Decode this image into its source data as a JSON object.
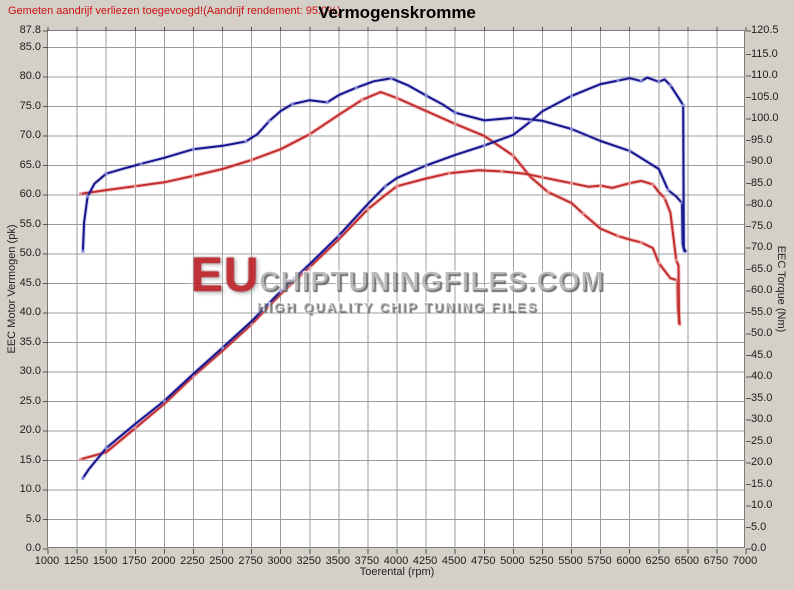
{
  "header": {
    "notice": "Gemeten aandrijf verliezen toegevoegd!(Aandrijf rendement: 95.0%)",
    "title": "Vermogenskromme"
  },
  "watermark": {
    "line1_accent": "EU",
    "line1_rest": "CHIPTUNINGFILES.COM",
    "line2": "HIGH QUALITY CHIP TUNING FILES"
  },
  "colors": {
    "page_bg": "#d4d0c8",
    "plot_bg": "#ffffff",
    "grid": "#9c9c9c",
    "frame": "#7a7a7a",
    "tick": "#555555",
    "notice_red": "#cc1111",
    "blue_curve": "#16168c",
    "red_curve": "#c22e2e",
    "blue_halo": "rgba(90,90,200,0.30)",
    "red_halo": "rgba(230,120,120,0.45)",
    "blue_marker": "#9098d8",
    "red_marker": "#e49c9c"
  },
  "chart_data": {
    "type": "line",
    "title": "Vermogenskromme",
    "xlabel": "Toerental (rpm)",
    "ylabel_left": "EEC Motor Vermogen (pk)",
    "ylabel_right": "EEC Torque (Nm)",
    "grid": true,
    "legend": "none",
    "x_range": [
      1000,
      7000
    ],
    "y_left_range": [
      0,
      87.8
    ],
    "y_right_range": [
      0,
      120.5
    ],
    "x_ticks": [
      1000,
      1250,
      1500,
      1750,
      2000,
      2250,
      2500,
      2750,
      3000,
      3250,
      3500,
      3750,
      4000,
      4250,
      4500,
      4750,
      5000,
      5250,
      5500,
      5750,
      6000,
      6250,
      6500,
      6750,
      7000
    ],
    "y_left_ticks": [
      0.0,
      5.0,
      10.0,
      15.0,
      20.0,
      25.0,
      30.0,
      35.0,
      40.0,
      45.0,
      50.0,
      55.0,
      60.0,
      65.0,
      70.0,
      75.0,
      80.0,
      85.0,
      87.8
    ],
    "y_right_ticks": [
      0.0,
      5.0,
      10.0,
      15.0,
      20.0,
      25.0,
      30.0,
      35.0,
      40.0,
      45.0,
      50.0,
      55.0,
      60.0,
      65.0,
      70.0,
      75.0,
      80.0,
      85.0,
      90.0,
      95.0,
      100.0,
      105.0,
      110.0,
      115.0,
      120.5
    ],
    "series": [
      {
        "name": "red-torque",
        "axis": "right",
        "unit": "Nm",
        "color": "#c22e2e",
        "x": [
          1280,
          1500,
          1750,
          2000,
          2250,
          2500,
          2750,
          3000,
          3250,
          3500,
          3700,
          3860,
          4000,
          4250,
          4500,
          4750,
          5000,
          5150,
          5300,
          5500,
          5600,
          5750,
          5900,
          6000,
          6100,
          6200,
          6250,
          6350,
          6410,
          6415,
          6430
        ],
        "values": [
          82.6,
          83.5,
          84.4,
          85.3,
          86.8,
          88.4,
          90.5,
          93.0,
          96.5,
          101.0,
          104.5,
          106.3,
          104.9,
          101.9,
          98.9,
          96.1,
          91.5,
          86.5,
          83.0,
          80.5,
          78.0,
          74.5,
          72.8,
          72.0,
          71.3,
          70.0,
          66.5,
          63.0,
          62.5,
          56.0,
          52.3
        ]
      },
      {
        "name": "blue-torque",
        "axis": "right",
        "unit": "Nm",
        "color": "#16168c",
        "x": [
          1300,
          1310,
          1340,
          1400,
          1500,
          1650,
          1800,
          2000,
          2250,
          2500,
          2700,
          2800,
          2900,
          3000,
          3100,
          3250,
          3400,
          3500,
          3650,
          3800,
          3950,
          4100,
          4250,
          4400,
          4500,
          4750,
          5000,
          5250,
          5500,
          5750,
          6000,
          6250,
          6330,
          6400,
          6450,
          6455,
          6470
        ],
        "values": [
          69.3,
          76.0,
          82.0,
          85.0,
          87.3,
          88.5,
          89.6,
          91.0,
          93.0,
          93.8,
          94.8,
          96.5,
          99.5,
          101.9,
          103.5,
          104.4,
          103.9,
          105.6,
          107.3,
          108.8,
          109.5,
          107.8,
          105.5,
          103.3,
          101.5,
          99.7,
          100.3,
          99.6,
          97.7,
          94.9,
          92.6,
          88.4,
          83.5,
          82.0,
          80.5,
          71.0,
          69.3
        ]
      },
      {
        "name": "red-power",
        "axis": "left",
        "unit": "pk",
        "color": "#c22e2e",
        "x": [
          1280,
          1500,
          1750,
          2000,
          2250,
          2500,
          2750,
          3000,
          3250,
          3500,
          3750,
          3900,
          4000,
          4250,
          4450,
          4700,
          4900,
          5100,
          5250,
          5400,
          5500,
          5650,
          5750,
          5850,
          6000,
          6100,
          6200,
          6250,
          6300,
          6350,
          6400,
          6420,
          6425
        ],
        "values": [
          15.2,
          16.4,
          20.5,
          24.6,
          29.3,
          33.6,
          38.1,
          43.2,
          47.8,
          52.5,
          57.6,
          60.0,
          61.5,
          62.8,
          63.7,
          64.2,
          64.0,
          63.6,
          63.0,
          62.4,
          62.0,
          61.4,
          61.6,
          61.2,
          62.0,
          62.4,
          61.8,
          60.5,
          59.5,
          57.0,
          49.0,
          48.0,
          38.3
        ]
      },
      {
        "name": "blue-power",
        "axis": "left",
        "unit": "pk",
        "color": "#16168c",
        "x": [
          1300,
          1350,
          1500,
          1750,
          2000,
          2250,
          2500,
          2750,
          3000,
          3250,
          3500,
          3750,
          3900,
          4000,
          4250,
          4500,
          4750,
          5000,
          5150,
          5250,
          5500,
          5750,
          5900,
          6000,
          6100,
          6150,
          6250,
          6300,
          6350,
          6420,
          6460,
          6465,
          6480
        ],
        "values": [
          12.0,
          13.5,
          17.1,
          21.2,
          25.1,
          29.7,
          34.1,
          38.6,
          43.7,
          48.3,
          53.1,
          58.5,
          61.5,
          62.9,
          65.0,
          66.8,
          68.4,
          70.2,
          72.5,
          74.2,
          76.8,
          78.8,
          79.4,
          79.8,
          79.3,
          79.9,
          79.2,
          79.6,
          78.6,
          76.5,
          75.2,
          51.0,
          50.5
        ]
      }
    ]
  }
}
